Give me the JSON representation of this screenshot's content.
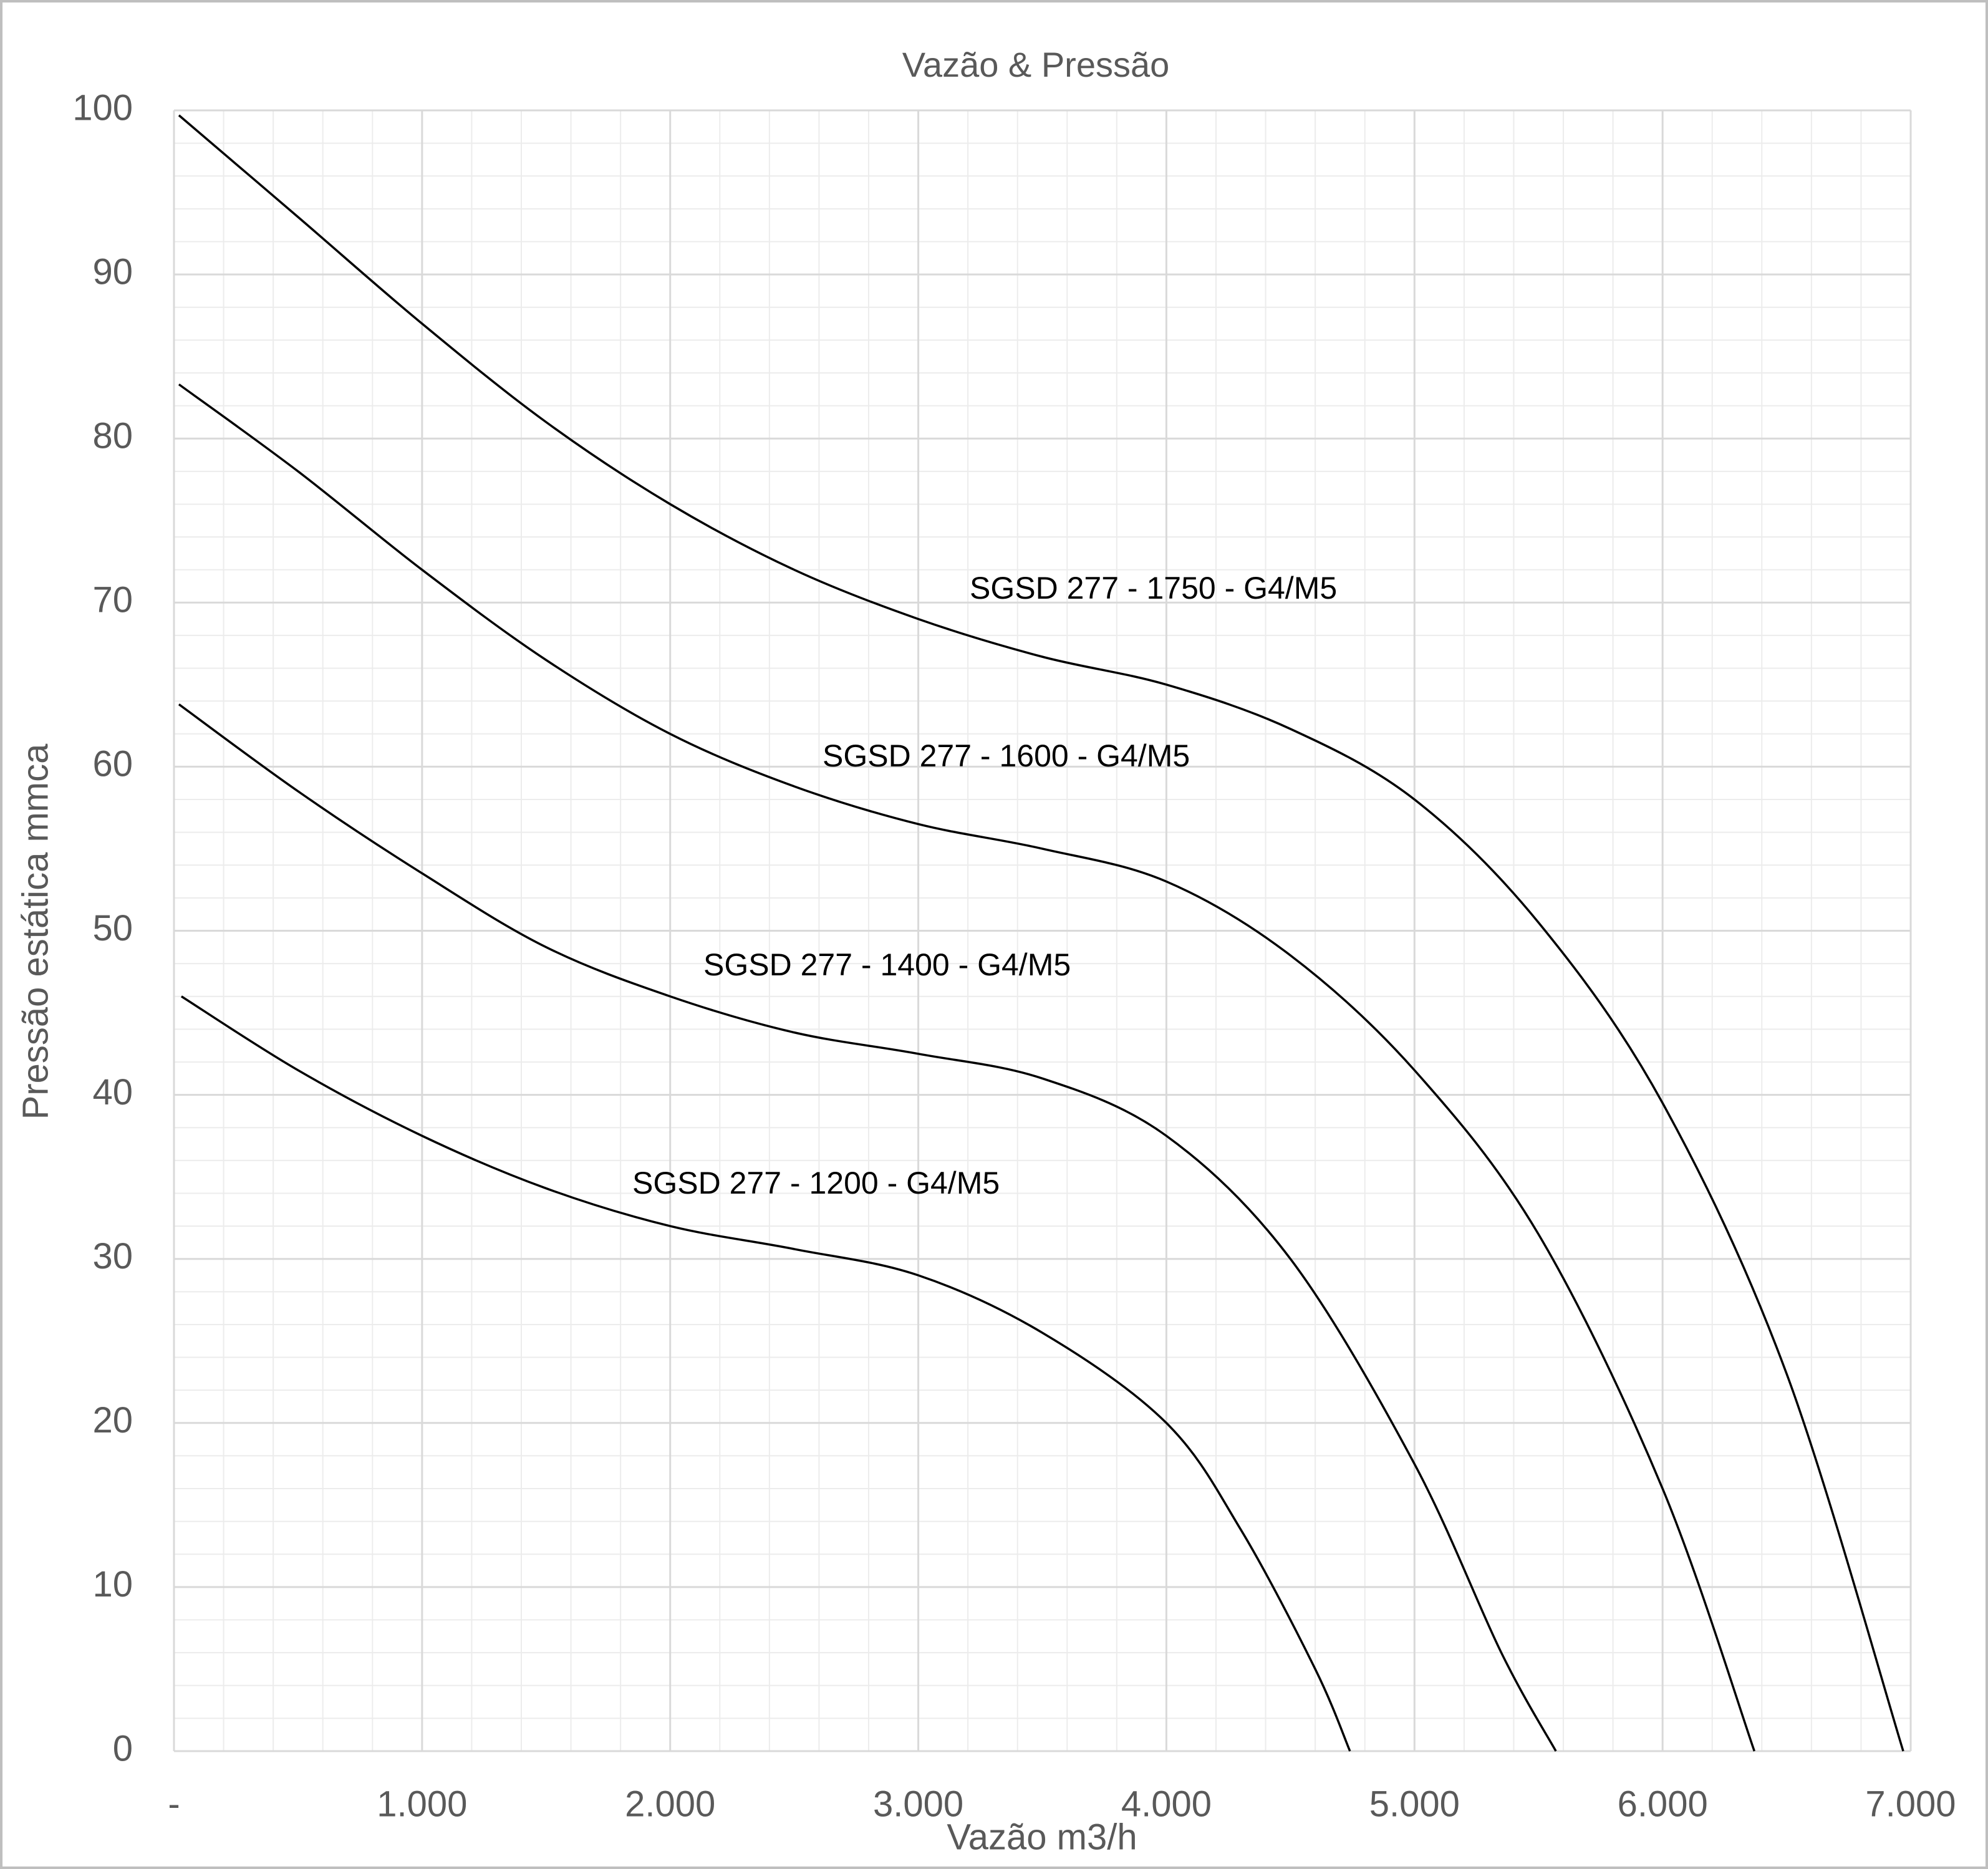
{
  "chart_data": {
    "type": "line",
    "title": "Vazão & Pressão",
    "x_label": "Vazão m3/h",
    "y_label": "Pressão estática mmca",
    "xlim": [
      0,
      7000
    ],
    "ylim": [
      0,
      100
    ],
    "xticks": [
      {
        "value": 0,
        "label": "-"
      },
      {
        "value": 1000,
        "label": "1.000"
      },
      {
        "value": 2000,
        "label": "2.000"
      },
      {
        "value": 3000,
        "label": "3.000"
      },
      {
        "value": 4000,
        "label": "4.000"
      },
      {
        "value": 5000,
        "label": "5.000"
      },
      {
        "value": 6000,
        "label": "6.000"
      },
      {
        "value": 7000,
        "label": "7.000"
      }
    ],
    "yticks": [
      0,
      10,
      20,
      30,
      40,
      50,
      60,
      70,
      80,
      90,
      100
    ],
    "grid": true,
    "minor_grid": true,
    "series": [
      {
        "name": "SGSD 277 - 1750 - G4/M5",
        "color": "#000000",
        "x": [
          20,
          500,
          1000,
          1500,
          2000,
          2500,
          3000,
          3500,
          4000,
          4500,
          5000,
          5500,
          6000,
          6500,
          6970
        ],
        "values": [
          99.7,
          93.5,
          87,
          81,
          76,
          72,
          69,
          66.7,
          65,
          62.3,
          58,
          50.5,
          39.5,
          23,
          0
        ]
      },
      {
        "name": "SGSD 277 - 1600 - G4/M5",
        "color": "#000000",
        "x": [
          20,
          500,
          1000,
          1500,
          2000,
          2500,
          3000,
          3500,
          4000,
          4500,
          5000,
          5500,
          6000,
          6370
        ],
        "values": [
          83.3,
          78,
          72,
          66.5,
          62,
          58.8,
          56.5,
          55,
          53,
          48.5,
          41.5,
          31.5,
          16,
          0
        ]
      },
      {
        "name": "SGSD 277 - 1400 - G4/M5",
        "color": "#000000",
        "x": [
          20,
          500,
          1000,
          1500,
          2000,
          2500,
          3000,
          3500,
          4000,
          4500,
          5000,
          5350,
          5570
        ],
        "values": [
          63.8,
          58.5,
          53.5,
          49,
          46,
          43.8,
          42.5,
          41,
          37.5,
          30,
          17.5,
          6,
          0
        ]
      },
      {
        "name": "SGSD 277 - 1200 - G4/M5",
        "color": "#000000",
        "x": [
          30,
          500,
          1000,
          1500,
          2000,
          2500,
          3000,
          3500,
          4000,
          4300,
          4600,
          4740
        ],
        "values": [
          46,
          41.5,
          37.5,
          34.3,
          32,
          30.6,
          29,
          25.5,
          20,
          13.5,
          5,
          0
        ]
      }
    ]
  }
}
